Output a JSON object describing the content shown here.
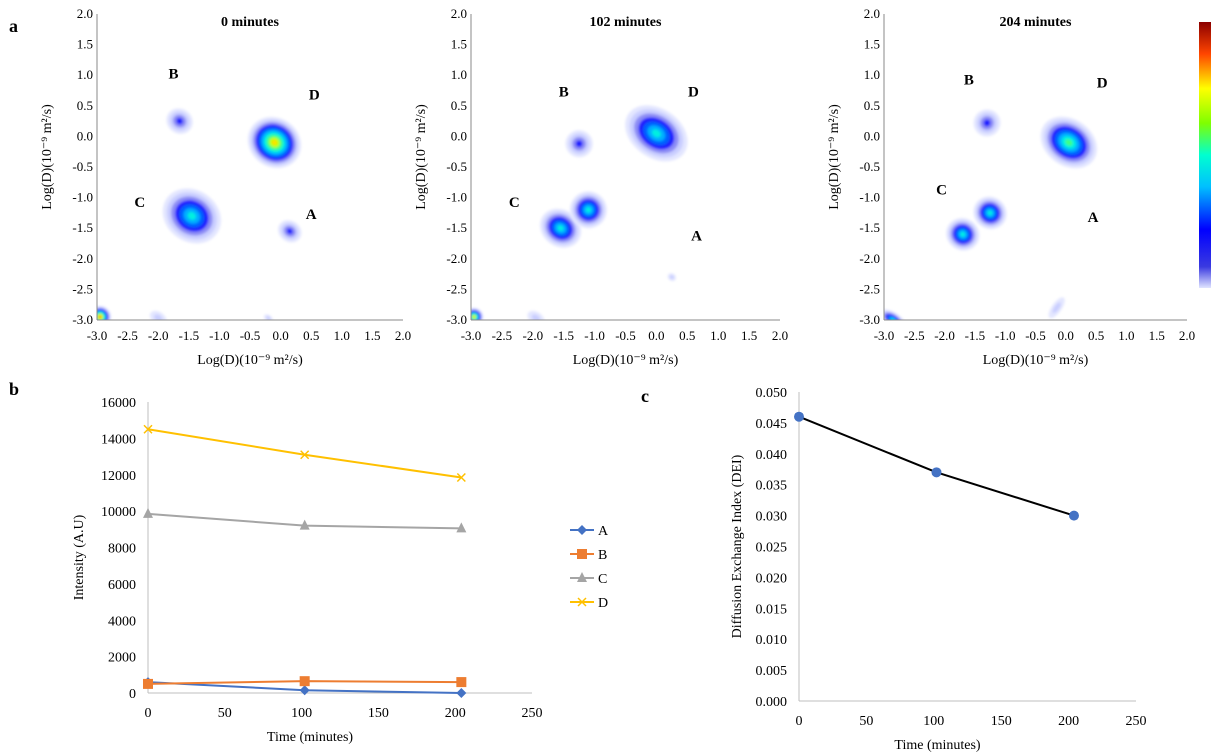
{
  "panel_labels": {
    "a": "a",
    "b": "b",
    "c": "c"
  },
  "colors": {
    "A": "#4472C4",
    "B": "#ED7D31",
    "C": "#A5A5A5",
    "D": "#FFC000",
    "dei": "#4472C4"
  },
  "chart_data": [
    {
      "type": "heatmap",
      "title": "0 minutes",
      "xlabel": "Log(D)(10⁻⁹ m²/s)",
      "ylabel": "Log(D)(10⁻⁹ m²/s)",
      "xlim": [
        -3.0,
        2.0
      ],
      "ylim": [
        -3.0,
        2.0
      ],
      "xticks": [
        "-3.0",
        "-2.5",
        "-2.0",
        "-1.5",
        "-1.0",
        "-0.5",
        "0.0",
        "0.5",
        "1.0",
        "1.5",
        "2.0"
      ],
      "yticks": [
        "2.0",
        "1.5",
        "1.0",
        "0.5",
        "0.0",
        "-0.5",
        "-1.0",
        "-1.5",
        "-2.0",
        "-2.5",
        "-3.0"
      ],
      "annotations": [
        {
          "text": "B",
          "x": -1.75,
          "y": 0.95
        },
        {
          "text": "D",
          "x": 0.55,
          "y": 0.6
        },
        {
          "text": "C",
          "x": -2.3,
          "y": -1.15
        },
        {
          "text": "A",
          "x": 0.5,
          "y": -1.35
        }
      ],
      "peaks": [
        {
          "x": -1.65,
          "y": 0.25,
          "rx": 0.22,
          "ry": 0.2,
          "level": 0.3
        },
        {
          "x": -0.1,
          "y": -0.1,
          "rx": 0.45,
          "ry": 0.4,
          "level": 0.85
        },
        {
          "x": -1.45,
          "y": -1.3,
          "rx": 0.5,
          "ry": 0.42,
          "level": 0.55
        },
        {
          "x": 0.15,
          "y": -1.55,
          "rx": 0.2,
          "ry": 0.17,
          "level": 0.3
        },
        {
          "x": -2.95,
          "y": -2.95,
          "rx": 0.18,
          "ry": 0.18,
          "level": 0.95
        },
        {
          "x": -2.0,
          "y": -2.97,
          "rx": 0.15,
          "ry": 0.1,
          "level": 0.2
        },
        {
          "x": -0.2,
          "y": -2.97,
          "rx": 0.08,
          "ry": 0.05,
          "level": 0.1
        }
      ]
    },
    {
      "type": "heatmap",
      "title": "102 minutes",
      "xlabel": "Log(D)(10⁻⁹ m²/s)",
      "ylabel": "Log(D)(10⁻⁹ m²/s)",
      "xlim": [
        -3.0,
        2.0
      ],
      "ylim": [
        -3.0,
        2.0
      ],
      "xticks": [
        "-3.0",
        "-2.5",
        "-2.0",
        "-1.5",
        "-1.0",
        "-0.5",
        "0.0",
        "0.5",
        "1.0",
        "1.5",
        "2.0"
      ],
      "yticks": [
        "2.0",
        "1.5",
        "1.0",
        "0.5",
        "0.0",
        "-0.5",
        "-1.0",
        "-1.5",
        "-2.0",
        "-2.5",
        "-3.0"
      ],
      "annotations": [
        {
          "text": "B",
          "x": -1.5,
          "y": 0.65
        },
        {
          "text": "D",
          "x": 0.6,
          "y": 0.65
        },
        {
          "text": "C",
          "x": -2.3,
          "y": -1.15
        },
        {
          "text": "A",
          "x": 0.65,
          "y": -1.7
        }
      ],
      "peaks": [
        {
          "x": -1.25,
          "y": -0.12,
          "rx": 0.22,
          "ry": 0.22,
          "level": 0.35
        },
        {
          "x": 0.0,
          "y": 0.05,
          "rx": 0.55,
          "ry": 0.4,
          "level": 0.6
        },
        {
          "x": -1.55,
          "y": -1.5,
          "rx": 0.35,
          "ry": 0.3,
          "level": 0.55
        },
        {
          "x": -1.1,
          "y": -1.2,
          "rx": 0.3,
          "ry": 0.3,
          "level": 0.55
        },
        {
          "x": 0.25,
          "y": -2.3,
          "rx": 0.07,
          "ry": 0.06,
          "level": 0.15
        },
        {
          "x": -2.95,
          "y": -2.95,
          "rx": 0.15,
          "ry": 0.15,
          "level": 0.85
        },
        {
          "x": -1.95,
          "y": -2.97,
          "rx": 0.15,
          "ry": 0.1,
          "level": 0.2
        }
      ]
    },
    {
      "type": "heatmap",
      "title": "204 minutes",
      "xlabel": "Log(D)(10⁻⁹ m²/s)",
      "ylabel": "Log(D)(10⁻⁹ m²/s)",
      "xlim": [
        -3.0,
        2.0
      ],
      "ylim": [
        -3.0,
        2.0
      ],
      "xticks": [
        "-3.0",
        "-2.5",
        "-2.0",
        "-1.5",
        "-1.0",
        "-0.5",
        "0.0",
        "0.5",
        "1.0",
        "1.5",
        "2.0"
      ],
      "yticks": [
        "2.0",
        "1.5",
        "1.0",
        "0.5",
        "0.0",
        "-0.5",
        "-1.0",
        "-1.5",
        "-2.0",
        "-2.5",
        "-3.0"
      ],
      "annotations": [
        {
          "text": "B",
          "x": -1.6,
          "y": 0.85
        },
        {
          "text": "D",
          "x": 0.6,
          "y": 0.8
        },
        {
          "text": "C",
          "x": -2.05,
          "y": -0.95
        },
        {
          "text": "A",
          "x": 0.45,
          "y": -1.4
        }
      ],
      "peaks": [
        {
          "x": -1.3,
          "y": 0.22,
          "rx": 0.22,
          "ry": 0.22,
          "level": 0.3
        },
        {
          "x": 0.05,
          "y": -0.1,
          "rx": 0.5,
          "ry": 0.38,
          "level": 0.65
        },
        {
          "x": -1.25,
          "y": -1.25,
          "rx": 0.28,
          "ry": 0.26,
          "level": 0.55
        },
        {
          "x": -1.7,
          "y": -1.6,
          "rx": 0.28,
          "ry": 0.26,
          "level": 0.55
        },
        {
          "x": -2.85,
          "y": -3.0,
          "rx": 0.25,
          "ry": 0.12,
          "level": 0.6
        },
        {
          "x": -0.15,
          "y": -2.8,
          "rx": 0.08,
          "ry": 0.2,
          "level": 0.12
        }
      ]
    },
    {
      "type": "line",
      "xlabel": "Time (minutes)",
      "ylabel": "Intensity (A.U)",
      "xlim": [
        0,
        250
      ],
      "ylim": [
        0,
        16000
      ],
      "xticks": [
        0,
        50,
        100,
        150,
        200,
        250
      ],
      "yticks": [
        0,
        2000,
        4000,
        6000,
        8000,
        10000,
        12000,
        14000,
        16000
      ],
      "x": [
        0,
        102,
        204
      ],
      "series": [
        {
          "name": "A",
          "values": [
            600,
            150,
            0
          ],
          "marker": "diamond"
        },
        {
          "name": "B",
          "values": [
            500,
            650,
            600
          ],
          "marker": "square"
        },
        {
          "name": "C",
          "values": [
            9850,
            9200,
            9050
          ],
          "marker": "triangle"
        },
        {
          "name": "D",
          "values": [
            14500,
            13100,
            11850
          ],
          "marker": "x"
        }
      ],
      "legend_position": "right"
    },
    {
      "type": "line",
      "xlabel": "Time (minutes)",
      "ylabel": "Diffusion Exchange Index (DEI)",
      "xlim": [
        0,
        250
      ],
      "ylim": [
        0,
        0.05
      ],
      "xticks": [
        0,
        50,
        100,
        150,
        200,
        250
      ],
      "yticks": [
        "0.000",
        "0.005",
        "0.010",
        "0.015",
        "0.020",
        "0.025",
        "0.030",
        "0.035",
        "0.040",
        "0.045",
        "0.050"
      ],
      "x": [
        0,
        102,
        204
      ],
      "series": [
        {
          "values": [
            0.046,
            0.037,
            0.03
          ]
        }
      ]
    }
  ]
}
